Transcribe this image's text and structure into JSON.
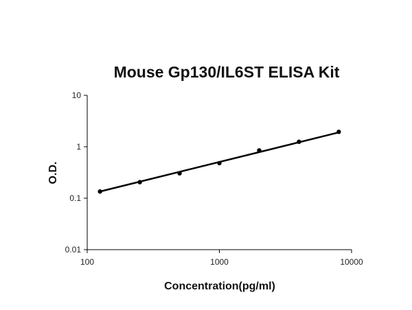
{
  "chart_data": {
    "type": "scatter",
    "title": "Mouse Gp130/IL6ST ELISA Kit",
    "xlabel": "Concentration(pg/ml)",
    "ylabel": "O.D.",
    "x_scale": "log",
    "y_scale": "log",
    "xlim": [
      100,
      10000
    ],
    "ylim": [
      0.01,
      10
    ],
    "x_ticks": [
      100,
      1000,
      10000
    ],
    "x_tick_labels": [
      "100",
      "1000",
      "10000"
    ],
    "y_ticks": [
      0.01,
      0.1,
      1,
      10
    ],
    "y_tick_labels": [
      "0.01",
      "0.1",
      "1",
      "10"
    ],
    "grid": false,
    "legend": false,
    "series": [
      {
        "x": [
          125,
          250,
          500,
          1000,
          2000,
          4000,
          8000
        ],
        "y": [
          0.135,
          0.205,
          0.305,
          0.48,
          0.85,
          1.25,
          1.95
        ]
      }
    ],
    "trendline": {
      "x": [
        125,
        8000
      ],
      "y": [
        0.135,
        1.9
      ]
    },
    "colors": {
      "points": "#000000",
      "line": "#000000"
    }
  }
}
